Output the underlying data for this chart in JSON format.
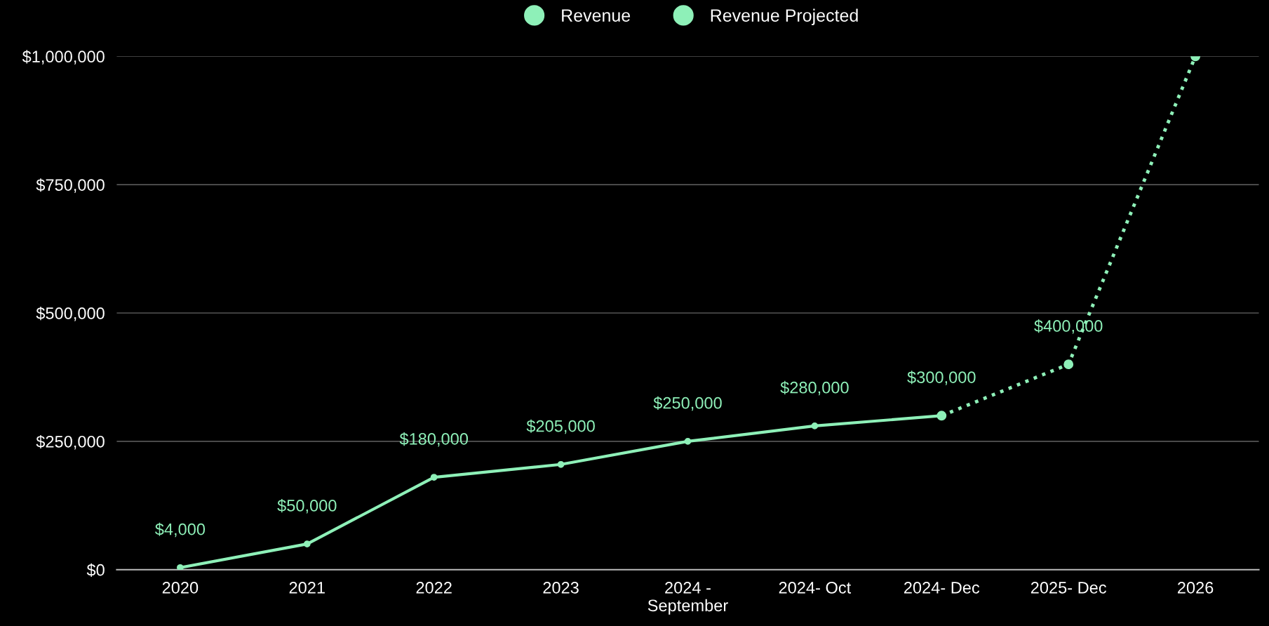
{
  "chart_data": {
    "type": "line",
    "categories": [
      "2020",
      "2021",
      "2022",
      "2023",
      "2024 -\nSeptember",
      "2024- Oct",
      "2024- Dec",
      "2025- Dec",
      "2026"
    ],
    "series": [
      {
        "name": "Revenue",
        "color": "#8ef0b8",
        "line_style": "solid",
        "values": [
          4000,
          50000,
          180000,
          205000,
          250000,
          280000,
          300000,
          null,
          null
        ],
        "value_labels": [
          "$4,000",
          "$50,000",
          "$180,000",
          "$205,000",
          "$250,000",
          "$280,000",
          "$300,000",
          null,
          null
        ]
      },
      {
        "name": "Revenue Projected",
        "color": "#8ef0b8",
        "line_style": "dotted",
        "values": [
          null,
          null,
          null,
          null,
          null,
          null,
          300000,
          400000,
          1000000
        ],
        "value_labels": [
          null,
          null,
          null,
          null,
          null,
          null,
          null,
          "$400,000",
          null
        ]
      }
    ],
    "ylim": [
      0,
      1000000
    ],
    "yticks": [
      {
        "value": 0,
        "label": "$0"
      },
      {
        "value": 250000,
        "label": "$250,000"
      },
      {
        "value": 500000,
        "label": "$500,000"
      },
      {
        "value": 750000,
        "label": "$750,000"
      },
      {
        "value": 1000000,
        "label": "$1,000,000"
      }
    ],
    "grid": "y",
    "legend": "top",
    "marker": "circle"
  }
}
